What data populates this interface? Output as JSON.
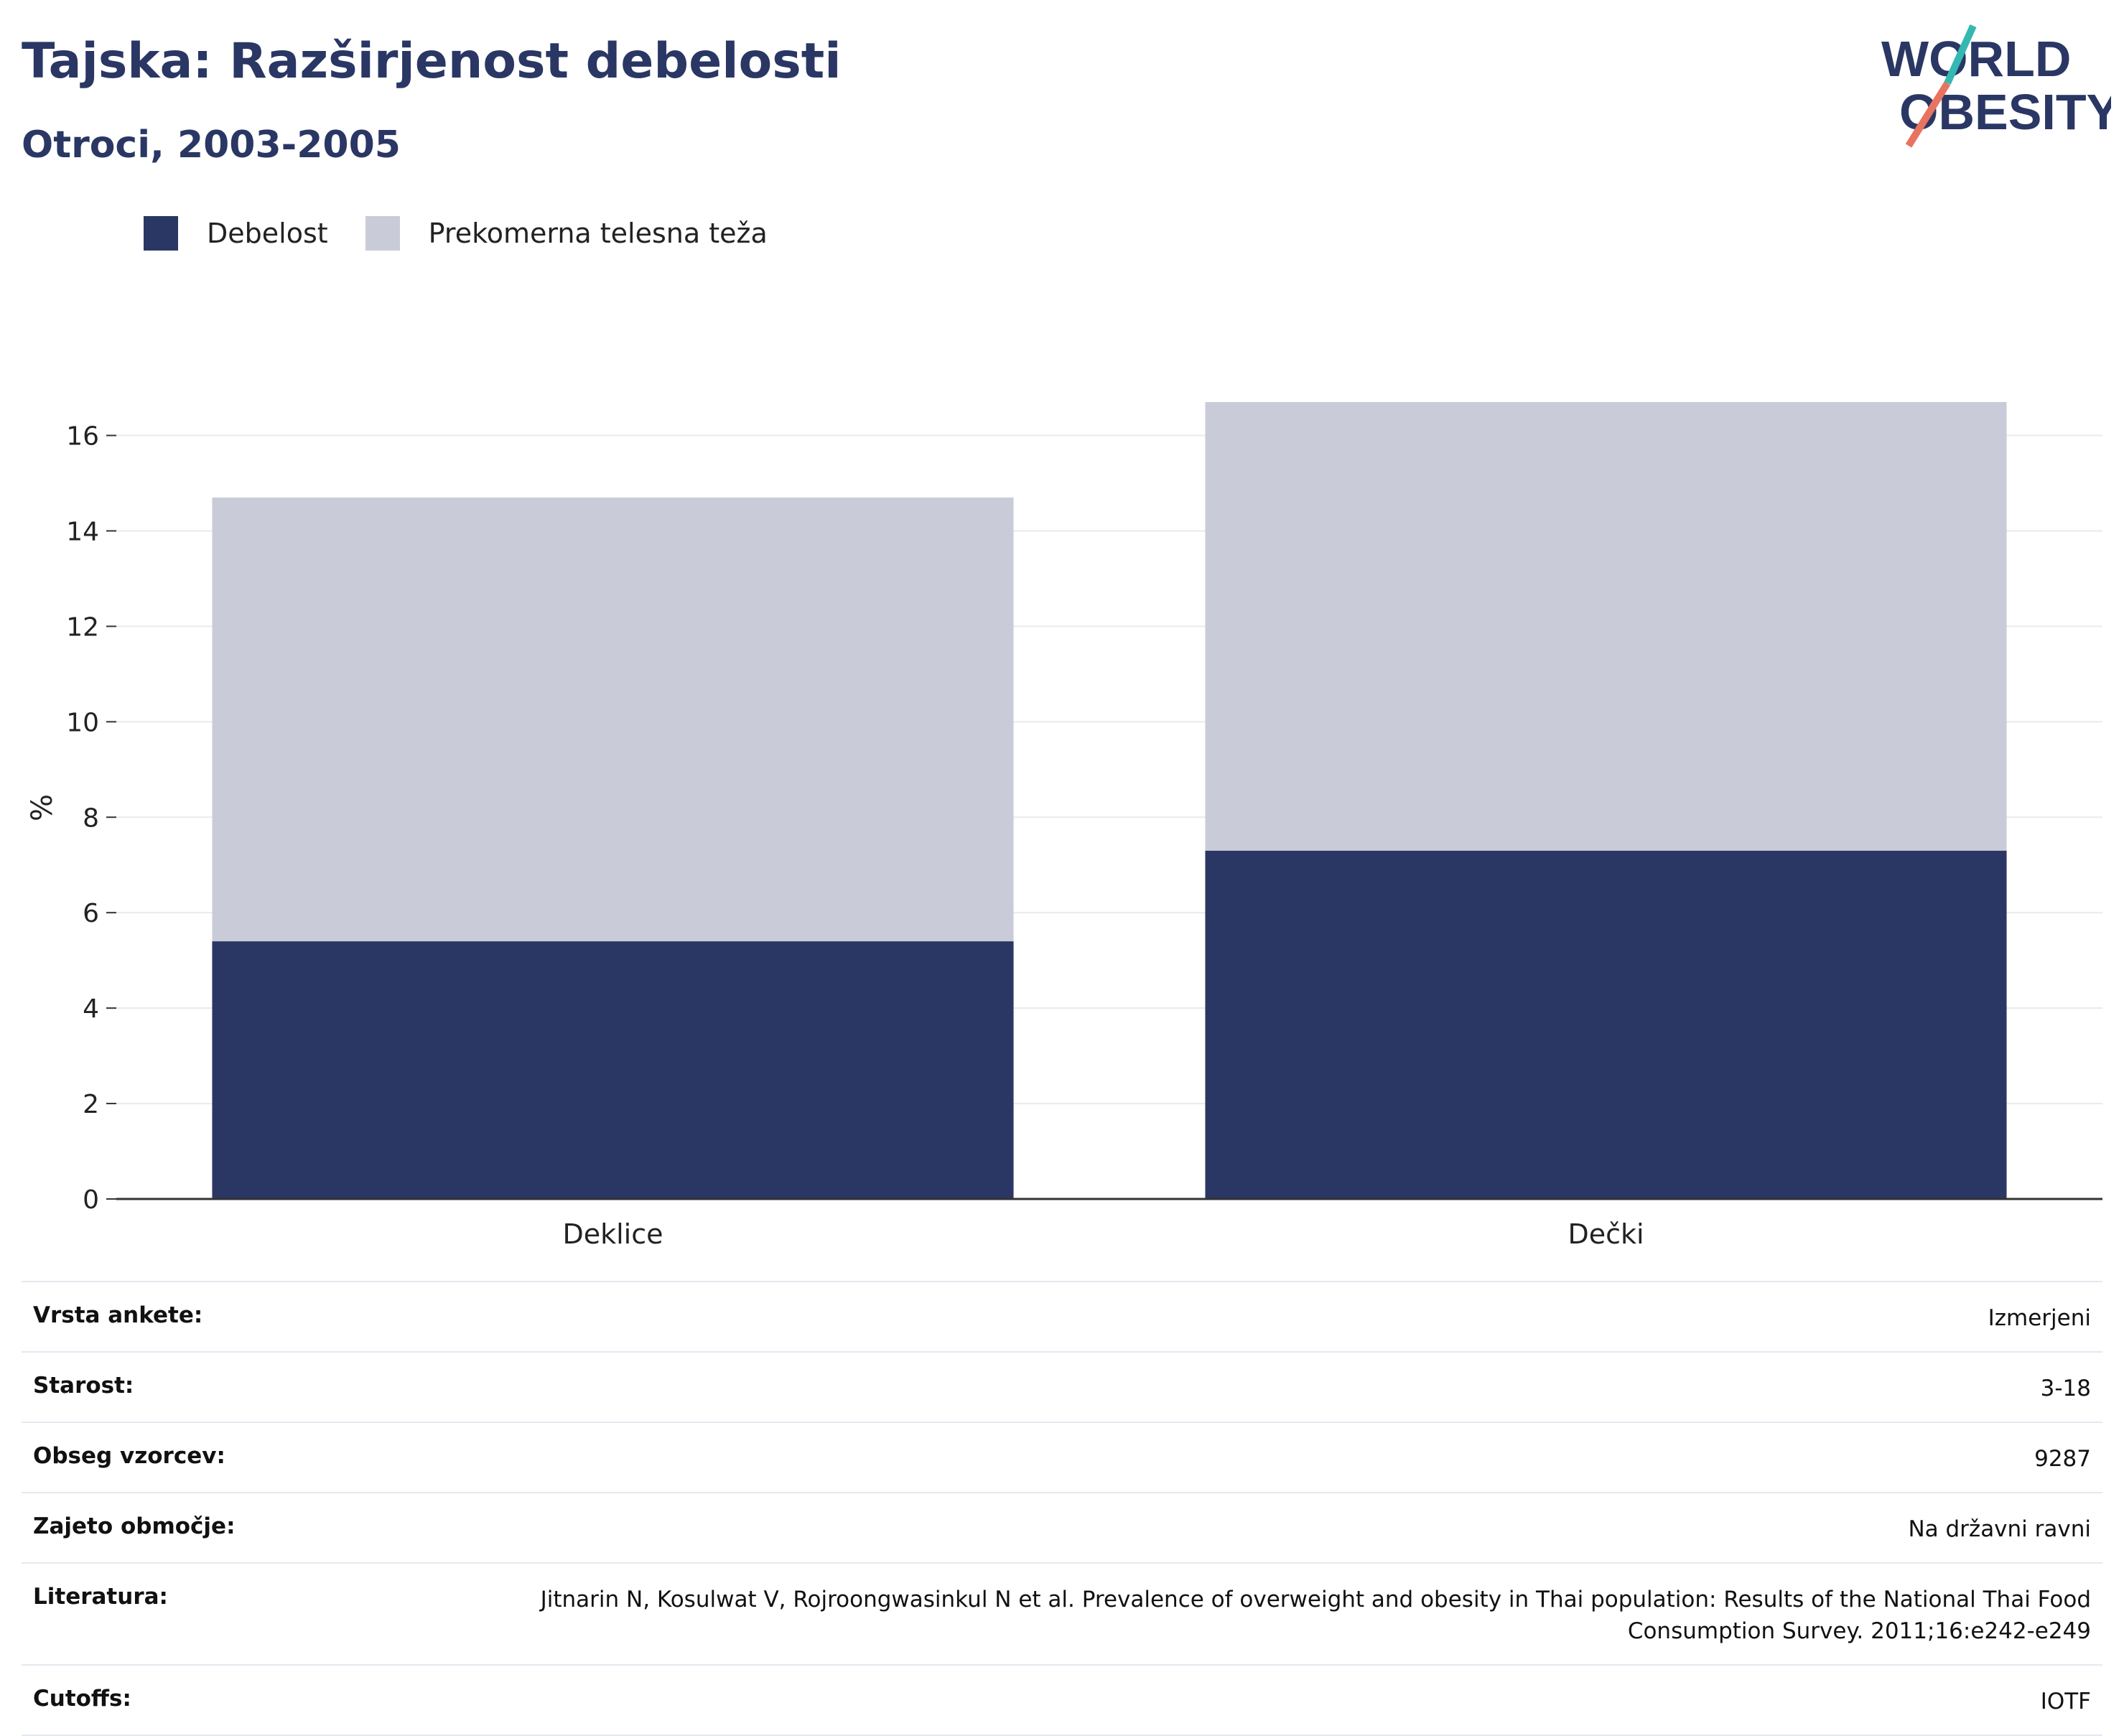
{
  "header": {
    "title": "Tajska: Razširjenost debelosti",
    "subtitle": "Otroci, 2003-2005"
  },
  "logo": {
    "line1": "WORLD",
    "line2": "OBESITY",
    "text_color": "#2a3764",
    "accent_teal": "#35b8b1",
    "accent_coral": "#e8735f"
  },
  "legend": {
    "items": [
      {
        "label": "Debelost",
        "color": "#2a3764"
      },
      {
        "label": "Prekomerna telesna teža",
        "color": "#c9ccd8"
      }
    ]
  },
  "chart_data": {
    "type": "bar",
    "stacked": true,
    "categories": [
      "Deklice",
      "Dečki"
    ],
    "series": [
      {
        "name": "Debelost",
        "values": [
          5.4,
          7.3
        ],
        "color": "#2a3764"
      },
      {
        "name": "Prekomerna telesna teža",
        "values": [
          9.3,
          9.4
        ],
        "color": "#c9ccd8"
      }
    ],
    "title": "Tajska: Razširjenost debelosti",
    "subtitle": "Otroci, 2003-2005",
    "xlabel": "",
    "ylabel": "%",
    "ylim": [
      0,
      16.7
    ],
    "yticks": [
      0,
      2,
      4,
      6,
      8,
      10,
      12,
      14,
      16
    ],
    "grid": true,
    "legend_position": "top-left"
  },
  "info": {
    "rows": [
      {
        "label": "Vrsta ankete:",
        "value": "Izmerjeni"
      },
      {
        "label": "Starost:",
        "value": "3-18"
      },
      {
        "label": "Obseg vzorcev:",
        "value": "9287"
      },
      {
        "label": "Zajeto območje:",
        "value": "Na državni ravni"
      },
      {
        "label": "Literatura:",
        "value": "Jitnarin N, Kosulwat V, Rojroongwasinkul N et al. Prevalence of overweight and obesity in Thai population: Results of the National Thai Food Consumption Survey. 2011;16:e242-e249"
      },
      {
        "label": "Cutoffs:",
        "value": "IOTF"
      }
    ]
  }
}
